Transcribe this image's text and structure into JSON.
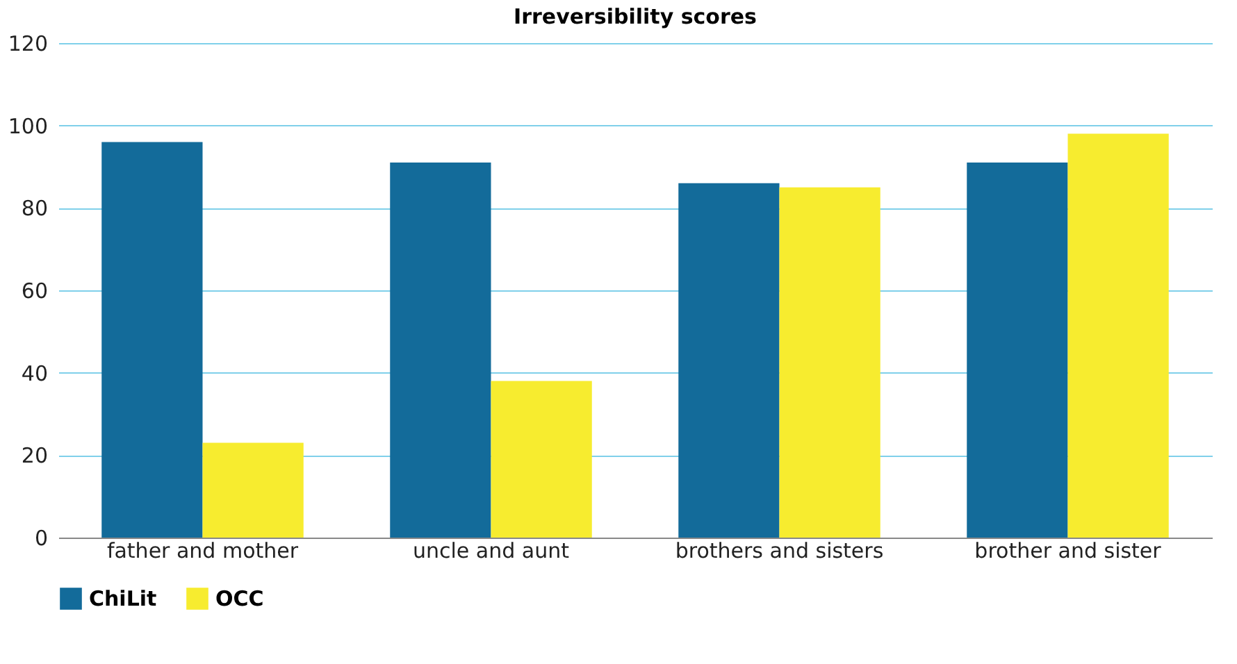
{
  "chart_data": {
    "type": "bar",
    "title": "Irreversibility scores",
    "categories": [
      "father and mother",
      "uncle and aunt",
      "brothers and sisters",
      "brother and sister"
    ],
    "series": [
      {
        "name": "ChiLit",
        "color": "#136b9a",
        "values": [
          96,
          91,
          86,
          91
        ]
      },
      {
        "name": "OCC",
        "color": "#f7ec2f",
        "values": [
          23,
          38,
          85,
          98
        ]
      }
    ],
    "ylim": [
      0,
      120
    ],
    "yticks": [
      0,
      20,
      40,
      60,
      80,
      100,
      120
    ],
    "grid": "y",
    "legend": "bottom"
  }
}
